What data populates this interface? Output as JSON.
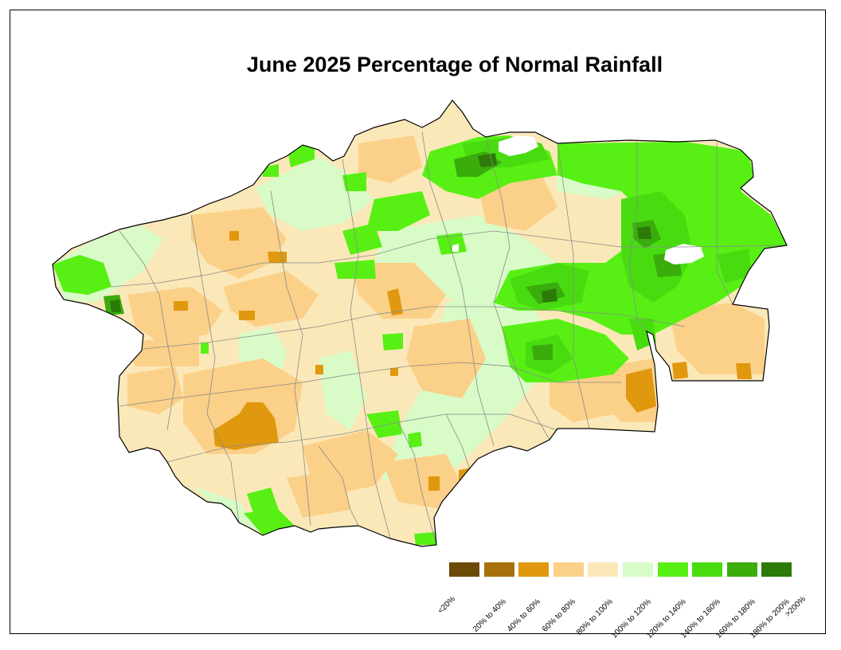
{
  "title": "June 2025 Percentage of Normal Rainfall",
  "colors": {
    "border": "#000000",
    "county_lines": "#8a8a8a",
    "missing": "#ffffff"
  },
  "legend": {
    "items": [
      {
        "label": "<20%",
        "color": "#6e4a08"
      },
      {
        "label": "20% to 40%",
        "color": "#a8700c"
      },
      {
        "label": "40% to 60%",
        "color": "#e0980e"
      },
      {
        "label": "60% to 80%",
        "color": "#fbd088"
      },
      {
        "label": "80% to 100%",
        "color": "#fbe8b8"
      },
      {
        "label": "100% to 120%",
        "color": "#d8fbc8"
      },
      {
        "label": "120% to 140%",
        "color": "#58f014"
      },
      {
        "label": "140% to 160%",
        "color": "#48dc10"
      },
      {
        "label": "160% to 180%",
        "color": "#3aac0c"
      },
      {
        "label": "180% to 200%",
        "color": "#2c7a08"
      }
    ],
    "last_label": ">200%"
  }
}
